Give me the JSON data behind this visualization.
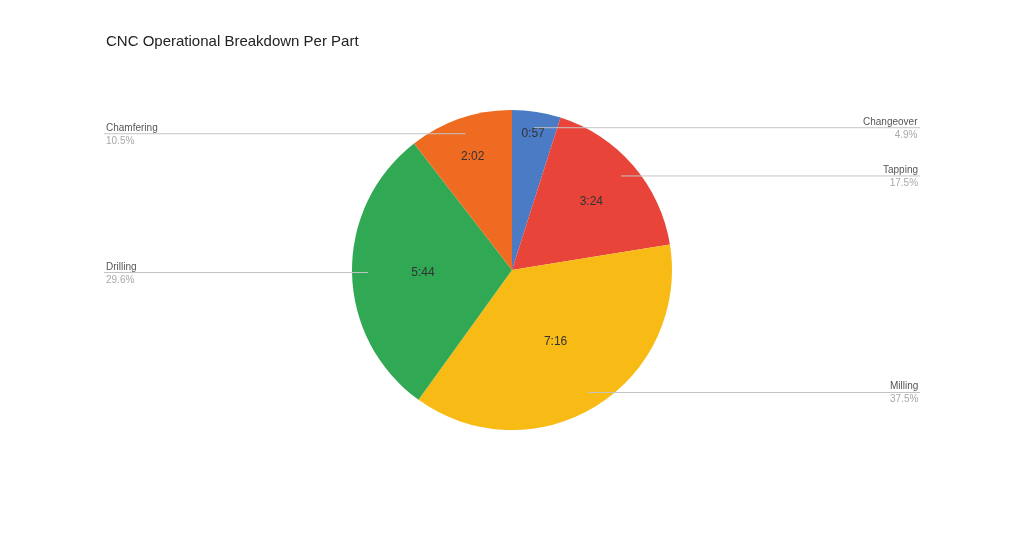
{
  "chart_data": {
    "type": "pie",
    "title": "CNC Operational Breakdown Per Part",
    "categories": [
      "Changeover\n4.9%",
      "Tapping\n17.5%",
      "Milling\n37.5%",
      "Drilling\n29.6%",
      "Chamfering\n10.5%"
    ],
    "values": [
      57,
      204,
      436,
      344,
      122
    ],
    "colors": [
      "#4a7bc4",
      "#e8443a",
      "#f8bb15",
      "#31a853",
      "#f06b22"
    ],
    "value_labels": [
      "0:57",
      "3:24",
      "7:16",
      "5:44",
      "2:02"
    ],
    "legend": false
  }
}
